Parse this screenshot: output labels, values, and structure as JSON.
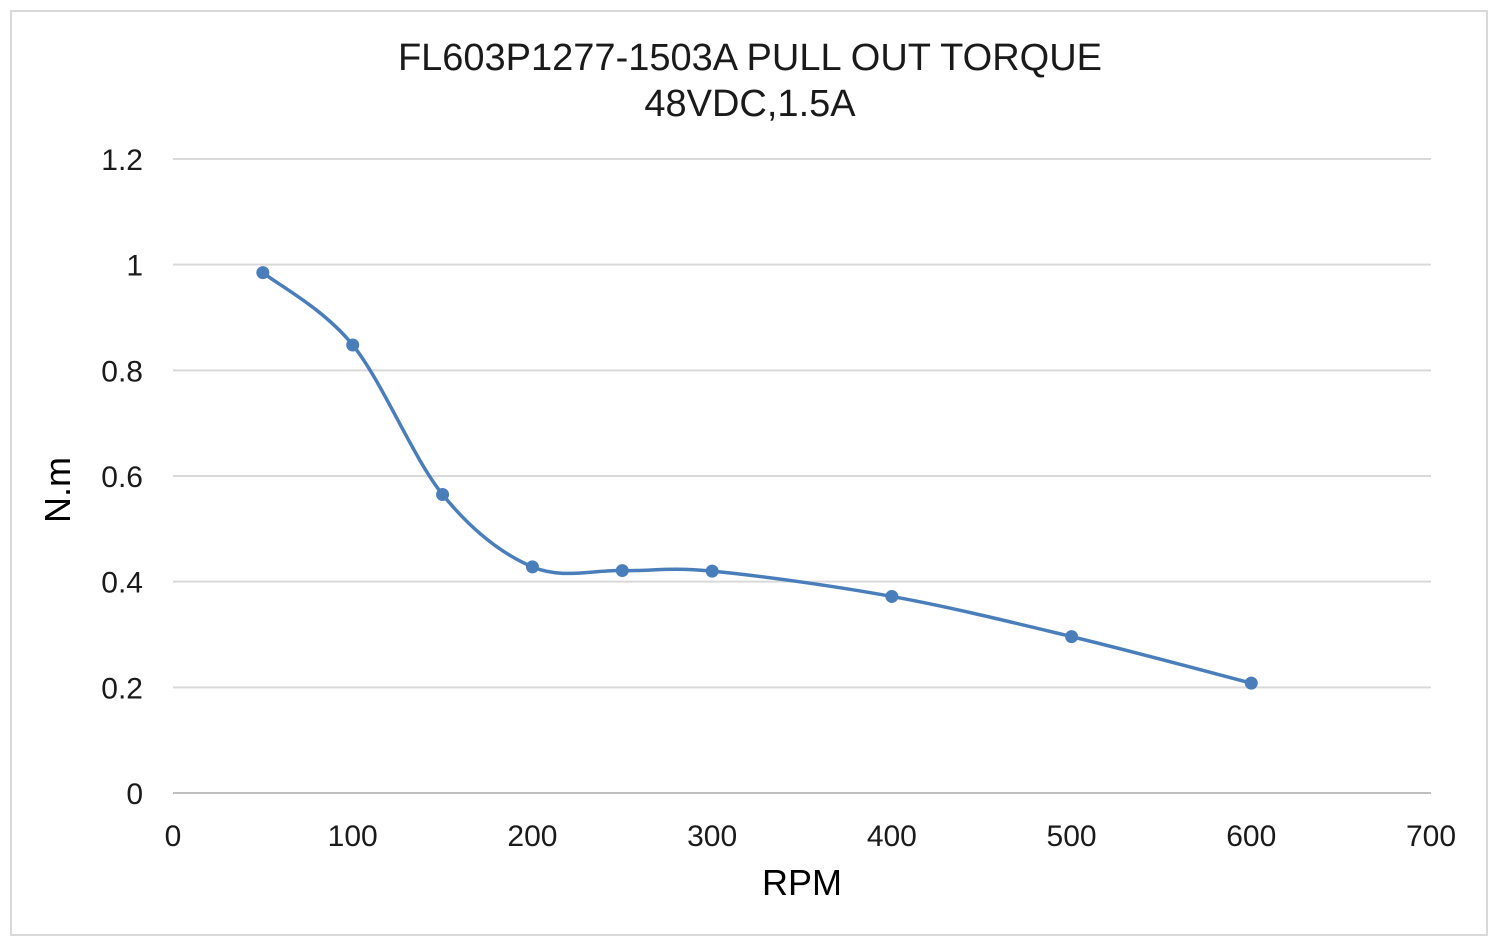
{
  "chart_data": {
    "type": "line",
    "title": "FL603P1277-1503A PULL OUT TORQUE",
    "subtitle": "48VDC,1.5A",
    "xlabel": "RPM",
    "ylabel": "N.m",
    "xlim": [
      0,
      700
    ],
    "ylim": [
      0,
      1.2
    ],
    "x_ticks": [
      "0",
      "100",
      "200",
      "300",
      "400",
      "500",
      "600",
      "700"
    ],
    "y_ticks": [
      "0",
      "0.2",
      "0.4",
      "0.6",
      "0.8",
      "1",
      "1.2"
    ],
    "grid": "horizontal",
    "smooth": true,
    "color": "#4a7ebb",
    "series": [
      {
        "x": [
          50,
          100,
          150,
          200,
          250,
          300,
          400,
          500,
          600
        ],
        "y": [
          0.985,
          0.848,
          0.565,
          0.428,
          0.421,
          0.42,
          0.372,
          0.296,
          0.208
        ]
      }
    ]
  }
}
